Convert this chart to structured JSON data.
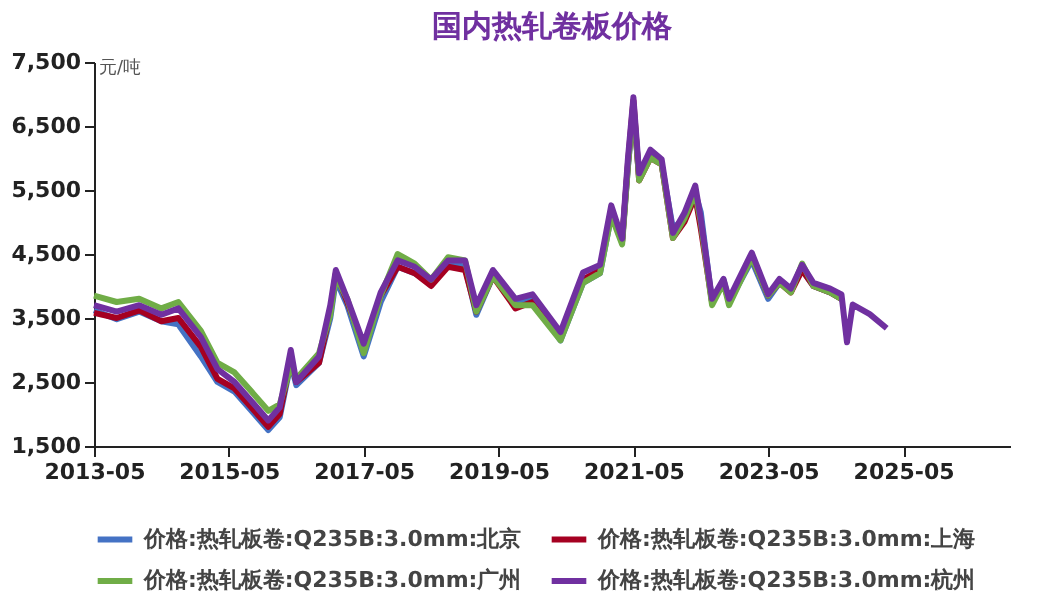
{
  "chart_data": {
    "type": "line",
    "title": "国内热轧卷板价格",
    "ylabel": "元/吨",
    "x": [
      "2013-05",
      "2013-09",
      "2014-01",
      "2014-05",
      "2014-08",
      "2014-12",
      "2015-03",
      "2015-06",
      "2015-09",
      "2015-12",
      "2016-02",
      "2016-04",
      "2016-05",
      "2016-09",
      "2016-11",
      "2016-12",
      "2017-02",
      "2017-05",
      "2017-08",
      "2017-11",
      "2018-02",
      "2018-05",
      "2018-08",
      "2018-11",
      "2019-01",
      "2019-04",
      "2019-08",
      "2019-11",
      "2020-04",
      "2020-08",
      "2020-11",
      "2021-01",
      "2021-03",
      "2021-04",
      "2021-05",
      "2021-06",
      "2021-08",
      "2021-10",
      "2021-12",
      "2022-02",
      "2022-04",
      "2022-05",
      "2022-07",
      "2022-09",
      "2022-10",
      "2023-02",
      "2023-05",
      "2023-07",
      "2023-09",
      "2023-11",
      "2024-01",
      "2024-04",
      "2024-06",
      "2024-07",
      "2024-08",
      "2024-11",
      "2025-02"
    ],
    "series": [
      {
        "name": "价格:热轧板卷:Q235B:3.0mm:北京",
        "color": "#4472c4",
        "values": [
          3620,
          3480,
          3600,
          3450,
          3400,
          2900,
          2500,
          2350,
          2050,
          1750,
          1950,
          2800,
          2450,
          2800,
          3500,
          4100,
          3700,
          2900,
          3750,
          4300,
          4200,
          4050,
          4350,
          4300,
          3550,
          4150,
          3750,
          3800,
          3150,
          4050,
          4200,
          5100,
          4700,
          5850,
          6800,
          5700,
          6050,
          5900,
          4900,
          5050,
          5450,
          5150,
          3750,
          4100,
          3750,
          4400,
          3800,
          4050,
          3950,
          4250,
          4000,
          3900,
          3800,
          null,
          null,
          null,
          null
        ]
      },
      {
        "name": "价格:热轧板卷:Q235B:3.0mm:上海",
        "color": "#a50021",
        "values": [
          3580,
          3500,
          3620,
          3450,
          3500,
          3050,
          2550,
          2400,
          2100,
          1800,
          2000,
          2850,
          2500,
          2800,
          3600,
          4200,
          3750,
          3050,
          3850,
          4300,
          4200,
          4000,
          4300,
          4250,
          3600,
          4150,
          3650,
          3750,
          3200,
          4100,
          4250,
          5200,
          4700,
          5900,
          6900,
          5650,
          6000,
          5900,
          4750,
          5000,
          5400,
          4900,
          3750,
          4050,
          3750,
          4450,
          3850,
          4050,
          3900,
          4250,
          4000,
          3900,
          3800,
          null,
          null,
          null,
          null
        ]
      },
      {
        "name": "价格:热轧板卷:Q235B:3.0mm:广州",
        "color": "#70ad47",
        "values": [
          3850,
          3750,
          3800,
          3650,
          3750,
          3300,
          2800,
          2650,
          2350,
          2050,
          2150,
          2750,
          2550,
          2950,
          3550,
          4150,
          3800,
          2950,
          3850,
          4500,
          4350,
          4100,
          4450,
          4400,
          3600,
          4150,
          3700,
          3700,
          3150,
          4050,
          4200,
          5100,
          4650,
          5850,
          6850,
          5650,
          6000,
          5900,
          4750,
          5050,
          5450,
          5000,
          3700,
          4050,
          3700,
          4450,
          3850,
          4050,
          3900,
          4350,
          4000,
          3900,
          3800,
          null,
          null,
          null,
          null
        ]
      },
      {
        "name": "价格:热轧板卷:Q235B:3.0mm:杭州",
        "color": "#7030a0",
        "values": [
          3700,
          3600,
          3700,
          3550,
          3650,
          3200,
          2700,
          2500,
          2200,
          1900,
          2100,
          3000,
          2500,
          2900,
          3700,
          4250,
          3800,
          3100,
          3900,
          4400,
          4300,
          4100,
          4400,
          4400,
          3700,
          4250,
          3800,
          3870,
          3280,
          4210,
          4330,
          5260,
          4740,
          5980,
          6950,
          5760,
          6130,
          5980,
          4830,
          5140,
          5570,
          5050,
          3800,
          4110,
          3800,
          4520,
          3870,
          4110,
          3960,
          4330,
          4050,
          3960,
          3870,
          3120,
          3710,
          3560,
          3340
        ]
      }
    ],
    "xlim": [
      "2013-05",
      "2026-12"
    ],
    "xticks": [
      "2013-05",
      "2015-05",
      "2017-05",
      "2019-05",
      "2021-05",
      "2023-05",
      "2025-05"
    ],
    "ylim": [
      1500,
      7500
    ],
    "yticks": [
      {
        "value": 1500,
        "label": "1,500"
      },
      {
        "value": 2500,
        "label": "2,500"
      },
      {
        "value": 3500,
        "label": "3,500"
      },
      {
        "value": 4500,
        "label": "4,500"
      },
      {
        "value": 5500,
        "label": "5,500"
      },
      {
        "value": 6500,
        "label": "6,500"
      },
      {
        "value": 7500,
        "label": "7,500"
      }
    ],
    "grid": false,
    "legend": "bottom",
    "marker": "none",
    "line_style": "solid"
  }
}
